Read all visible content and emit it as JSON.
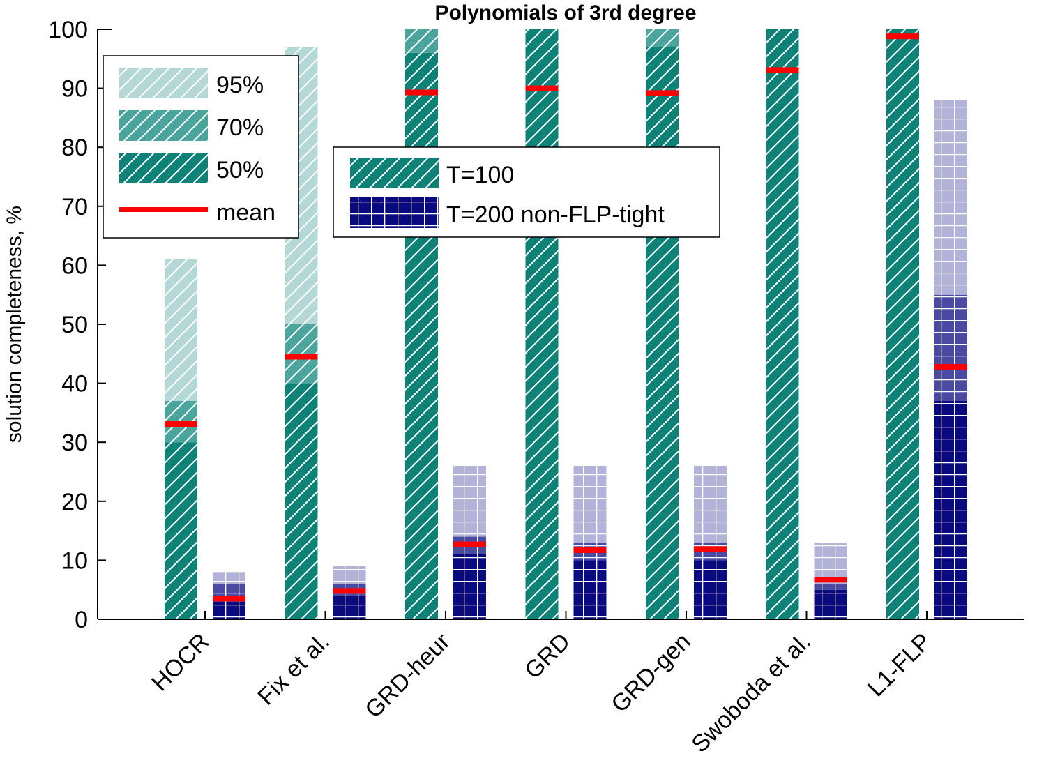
{
  "chart_data": {
    "type": "bar",
    "title": "Polynomials of 3rd degree",
    "xlabel": "",
    "ylabel": "solution completeness, %",
    "ylim": [
      0,
      100
    ],
    "yticks": [
      "0",
      "10",
      "20",
      "30",
      "40",
      "50",
      "60",
      "70",
      "80",
      "90",
      "100"
    ],
    "grid": false,
    "categories": [
      "HOCR",
      "Fix et al.",
      "GRD-heur",
      "GRD",
      "GRD-gen",
      "Swoboda et al.",
      "L1-FLP"
    ],
    "series": [
      {
        "name": "T=100",
        "pattern": "diagonal-hatch",
        "p50": [
          30,
          40,
          96,
          100,
          97,
          100,
          100
        ],
        "p70": [
          37,
          50,
          100,
          100,
          100,
          100,
          100
        ],
        "p95": [
          61,
          97,
          100,
          100,
          100,
          100,
          100
        ],
        "mean": [
          33.1,
          44.5,
          89.3,
          90.0,
          89.2,
          93.1,
          98.8
        ]
      },
      {
        "name": "T=200 non-FLP-tight",
        "pattern": "grid",
        "p50": [
          3,
          4,
          11,
          10,
          10,
          5,
          37
        ],
        "p70": [
          6,
          6,
          14,
          13,
          13,
          6,
          55
        ],
        "p95": [
          8,
          9,
          26,
          26,
          26,
          13,
          88
        ],
        "mean": [
          3.5,
          4.8,
          12.7,
          11.7,
          11.9,
          6.7,
          42.8
        ]
      }
    ],
    "legend_percentiles": {
      "placement": "top-left",
      "items": [
        "95%",
        "70%",
        "50%",
        "mean"
      ]
    },
    "legend_series": {
      "placement": "top-center",
      "items": [
        "T=100",
        "T=200 non-FLP-tight"
      ]
    },
    "colors": {
      "teal_50": "#0f8278",
      "teal_70": "#4ba59c",
      "teal_95": "#b3d8d5",
      "navy_50": "#0a0a80",
      "navy_70": "#4a4aa3",
      "navy_95": "#b3b3da",
      "mean": "#ff0000"
    }
  }
}
